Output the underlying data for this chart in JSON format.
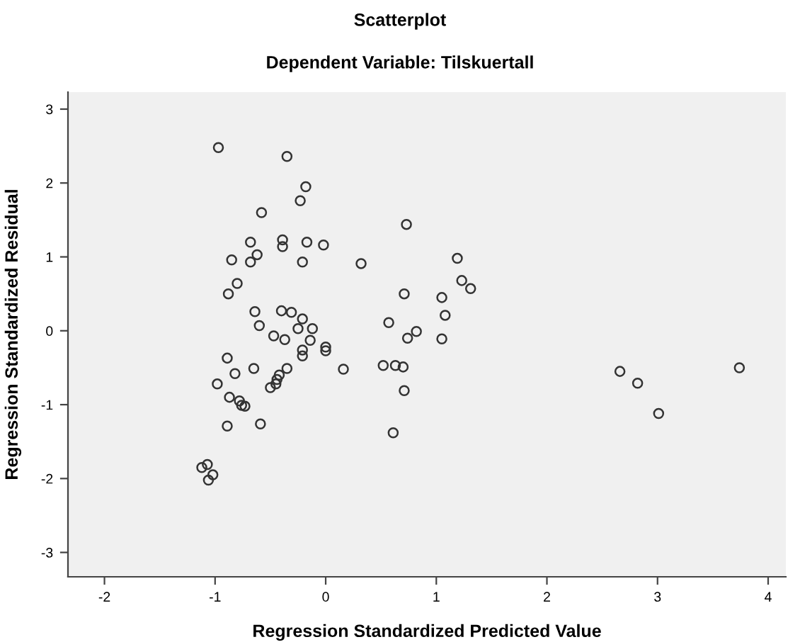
{
  "chart_data": {
    "type": "scatter",
    "title": "Scatterplot",
    "subtitle": "Dependent Variable: Tilskuertall",
    "xlabel": "Regression Standardized Predicted Value",
    "ylabel": "Regression Standardized Residual",
    "xlim": [
      -2.33,
      4.16
    ],
    "ylim": [
      -3.33,
      3.23
    ],
    "xticks": [
      -2,
      -1,
      0,
      1,
      2,
      3,
      4
    ],
    "yticks": [
      -3,
      -2,
      -1,
      0,
      1,
      2,
      3
    ],
    "grid": false,
    "legend": false,
    "marker": "circle",
    "series": [
      {
        "color": "#333333",
        "x": [
          -0.97,
          -0.35,
          -0.18,
          -0.23,
          -0.58,
          -0.68,
          -0.39,
          -0.39,
          -0.17,
          -0.02,
          -0.62,
          -0.85,
          -0.68,
          -0.21,
          0.32,
          0.73,
          -0.8,
          -0.88,
          0.71,
          -0.64,
          -0.4,
          -0.31,
          -0.21,
          -0.6,
          -0.25,
          -0.12,
          0.57,
          -0.47,
          -0.37,
          -0.14,
          -0.21,
          -0.21,
          0.0,
          0.0,
          0.74,
          -0.89,
          -0.82,
          -0.65,
          -0.35,
          0.16,
          -0.42,
          -0.44,
          -0.45,
          -0.5,
          -0.98,
          -0.87,
          -0.78,
          -0.76,
          -0.73,
          -0.89,
          -0.59,
          0.52,
          0.63,
          0.7,
          0.71,
          0.61,
          -1.12,
          -1.07,
          -1.02,
          -1.06,
          1.19,
          1.23,
          1.31,
          1.05,
          1.08,
          0.82,
          1.05,
          2.66,
          2.82,
          3.01,
          3.74
        ],
        "values": [
          2.48,
          2.36,
          1.95,
          1.76,
          1.6,
          1.2,
          1.23,
          1.14,
          1.2,
          1.16,
          1.03,
          0.96,
          0.93,
          0.93,
          0.91,
          1.44,
          0.64,
          0.5,
          0.5,
          0.26,
          0.27,
          0.25,
          0.16,
          0.07,
          0.03,
          0.03,
          0.11,
          -0.07,
          -0.12,
          -0.13,
          -0.26,
          -0.34,
          -0.22,
          -0.27,
          -0.1,
          -0.37,
          -0.58,
          -0.51,
          -0.51,
          -0.52,
          -0.6,
          -0.66,
          -0.72,
          -0.77,
          -0.72,
          -0.9,
          -0.95,
          -1.01,
          -1.02,
          -1.29,
          -1.26,
          -0.47,
          -0.47,
          -0.49,
          -0.81,
          -1.38,
          -1.85,
          -1.81,
          -1.95,
          -2.02,
          0.98,
          0.68,
          0.57,
          0.45,
          0.21,
          -0.01,
          -0.11,
          -0.55,
          -0.71,
          -1.12,
          -0.5
        ]
      }
    ]
  }
}
